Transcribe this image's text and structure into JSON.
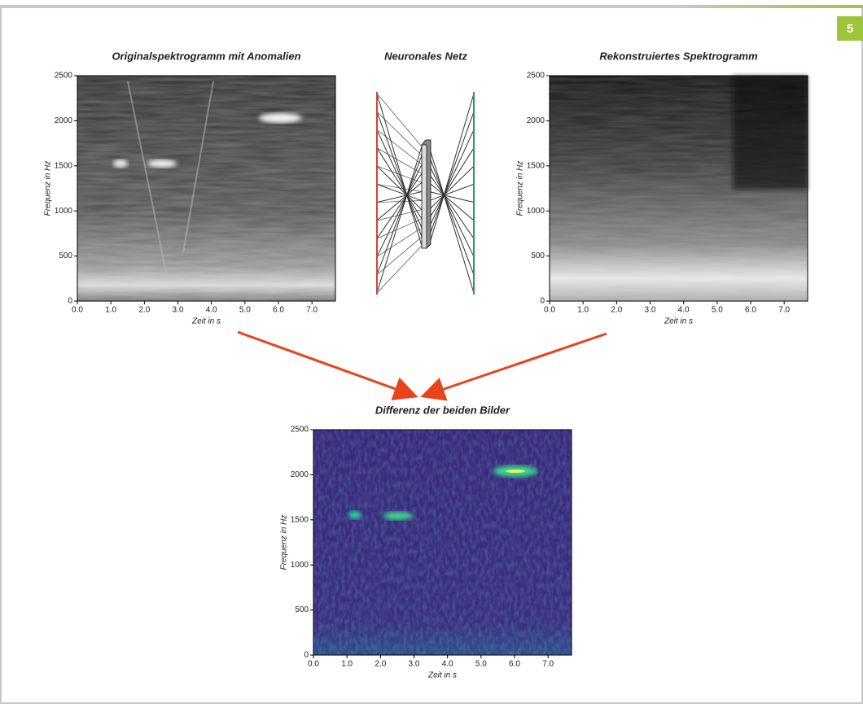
{
  "badge": "5",
  "panels": [
    {
      "title": "Originalspektrogramm mit Anomalien",
      "x_label": "Zeit in s",
      "y_label": "Frequenz in Hz",
      "xlim": [
        0,
        7.7
      ],
      "ylim": [
        0,
        2500
      ],
      "xticks": [
        {
          "value": 0,
          "label": "0.0"
        },
        {
          "value": 1,
          "label": "1.0"
        },
        {
          "value": 2,
          "label": "2.0"
        },
        {
          "value": 3,
          "label": "3.0"
        },
        {
          "value": 4,
          "label": "4.0"
        },
        {
          "value": 5,
          "label": "5.0"
        },
        {
          "value": 6,
          "label": "6.0"
        },
        {
          "value": 7,
          "label": "7.0"
        }
      ],
      "yticks": [
        0,
        500,
        1000,
        1500,
        2000,
        2500
      ]
    },
    {
      "title": "Rekonstruiertes Spektrogramm",
      "x_label": "Zeit in s",
      "y_label": "Frequenz in Hz",
      "xlim": [
        0,
        7.7
      ],
      "ylim": [
        0,
        2500
      ],
      "xticks": [
        {
          "value": 0,
          "label": "0.0"
        },
        {
          "value": 1,
          "label": "1.0"
        },
        {
          "value": 2,
          "label": "2.0"
        },
        {
          "value": 3,
          "label": "3.0"
        },
        {
          "value": 4,
          "label": "4.0"
        },
        {
          "value": 5,
          "label": "5.0"
        },
        {
          "value": 6,
          "label": "6.0"
        },
        {
          "value": 7,
          "label": "7.0"
        }
      ],
      "yticks": [
        0,
        500,
        1000,
        1500,
        2000,
        2500
      ]
    },
    {
      "title": "Differenz der beiden Bilder",
      "x_label": "Zeit in s",
      "y_label": "Frequenz in Hz",
      "xlim": [
        0,
        7.7
      ],
      "ylim": [
        0,
        2500
      ],
      "xticks": [
        {
          "value": 0,
          "label": "0.0"
        },
        {
          "value": 1,
          "label": "1.0"
        },
        {
          "value": 2,
          "label": "2.0"
        },
        {
          "value": 3,
          "label": "3.0"
        },
        {
          "value": 4,
          "label": "4.0"
        },
        {
          "value": 5,
          "label": "5.0"
        },
        {
          "value": 6,
          "label": "6.0"
        },
        {
          "value": 7,
          "label": "7.0"
        }
      ],
      "yticks": [
        0,
        500,
        1000,
        1500,
        2000,
        2500
      ]
    }
  ],
  "network": {
    "title": "Neuronales Netz"
  }
}
